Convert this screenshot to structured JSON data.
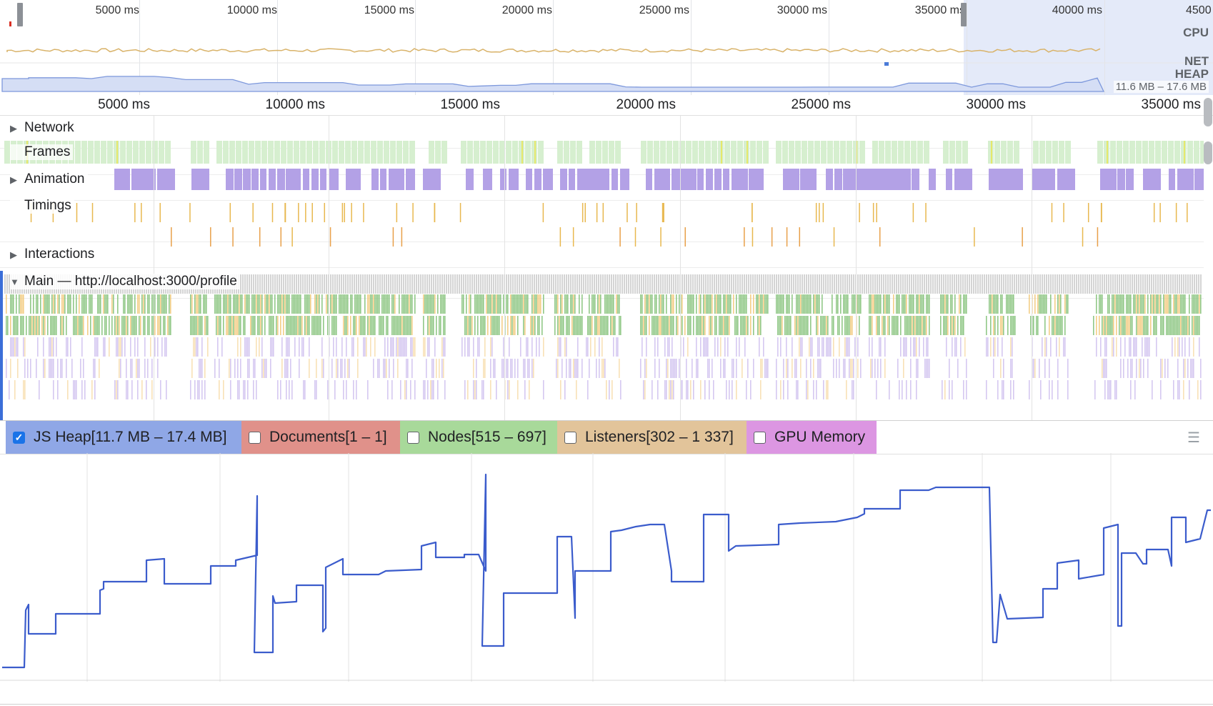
{
  "overview": {
    "ticks": [
      "5000 ms",
      "10000 ms",
      "15000 ms",
      "20000 ms",
      "25000 ms",
      "30000 ms",
      "35000 ms",
      "40000 ms",
      "4500"
    ],
    "labels": {
      "cpu": "CPU",
      "net": "NET",
      "heap": "HEAP"
    },
    "heap_range": "11.6 MB – 17.6 MB"
  },
  "ruler": {
    "ticks": [
      "5000 ms",
      "10000 ms",
      "15000 ms",
      "20000 ms",
      "25000 ms",
      "30000 ms",
      "35000 ms"
    ]
  },
  "tracks": {
    "network": "Network",
    "frames": "Frames",
    "animation": "Animation",
    "timings": "Timings",
    "interactions": "Interactions",
    "main": "Main — http://localhost:3000/profile"
  },
  "counters": [
    {
      "label": "JS Heap[11.7 MB – 17.4 MB]",
      "checked": true,
      "color": "#8fa7e6"
    },
    {
      "label": "Documents[1 – 1]",
      "checked": false,
      "color": "#e0918a"
    },
    {
      "label": "Nodes[515 – 697]",
      "checked": false,
      "color": "#a8d99a"
    },
    {
      "label": "Listeners[302 – 1 337]",
      "checked": false,
      "color": "#e2c49a"
    },
    {
      "label": "GPU Memory",
      "checked": false,
      "color": "#dc96e2"
    }
  ],
  "colors": {
    "heap_line": "#3b5ccc",
    "frames": "#d6efcf",
    "animation": "#b3a1e6",
    "timings": "#e8b84f",
    "scripting": "#f2c97a",
    "rendering": "#b39ae6",
    "painting": "#85c27a",
    "tasks": "#cfcfcf"
  },
  "icons": {
    "expand": "triangle-right-icon",
    "collapse": "triangle-down-icon",
    "menu": "hamburger-icon"
  }
}
